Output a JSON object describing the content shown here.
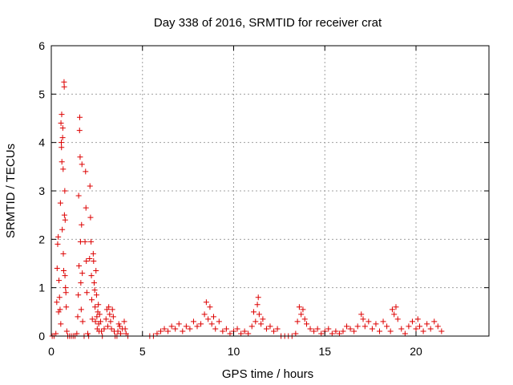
{
  "chart_data": {
    "type": "scatter",
    "title": "Day 338 of 2016, SRMTID for receiver crat",
    "xlabel": "GPS time / hours",
    "ylabel": "SRMTID / TECUs",
    "xlim": [
      0,
      24
    ],
    "ylim": [
      0,
      6
    ],
    "xticks": [
      0,
      5,
      10,
      15,
      20
    ],
    "yticks": [
      0,
      1,
      2,
      3,
      4,
      5,
      6
    ],
    "grid": true,
    "marker": "+",
    "color": "#dd0000",
    "series": [
      {
        "name": "SRMTID",
        "points": [
          [
            0.05,
            0.0
          ],
          [
            0.15,
            0.0
          ],
          [
            0.25,
            0.05
          ],
          [
            0.3,
            0.7
          ],
          [
            0.32,
            1.4
          ],
          [
            0.35,
            1.9
          ],
          [
            0.38,
            2.05
          ],
          [
            0.4,
            0.5
          ],
          [
            0.42,
            1.15
          ],
          [
            0.45,
            0.8
          ],
          [
            0.48,
            0.55
          ],
          [
            0.5,
            2.75
          ],
          [
            0.52,
            0.25
          ],
          [
            0.53,
            4.4
          ],
          [
            0.55,
            4.0
          ],
          [
            0.56,
            3.9
          ],
          [
            0.57,
            4.58
          ],
          [
            0.58,
            3.6
          ],
          [
            0.6,
            2.2
          ],
          [
            0.62,
            4.1
          ],
          [
            0.63,
            4.3
          ],
          [
            0.65,
            3.45
          ],
          [
            0.66,
            1.7
          ],
          [
            0.68,
            1.35
          ],
          [
            0.7,
            5.25
          ],
          [
            0.71,
            5.15
          ],
          [
            0.72,
            2.5
          ],
          [
            0.74,
            3.0
          ],
          [
            0.75,
            1.25
          ],
          [
            0.76,
            2.4
          ],
          [
            0.78,
            1.0
          ],
          [
            0.8,
            0.9
          ],
          [
            0.82,
            0.6
          ],
          [
            0.85,
            0.1
          ],
          [
            0.9,
            0.0
          ],
          [
            1.0,
            0.0
          ],
          [
            1.1,
            0.0
          ],
          [
            1.2,
            0.0
          ],
          [
            1.3,
            0.0
          ],
          [
            1.4,
            0.05
          ],
          [
            1.45,
            0.4
          ],
          [
            1.48,
            0.85
          ],
          [
            1.5,
            2.9
          ],
          [
            1.52,
            1.45
          ],
          [
            1.55,
            4.25
          ],
          [
            1.56,
            4.52
          ],
          [
            1.58,
            3.7
          ],
          [
            1.6,
            1.95
          ],
          [
            1.62,
            1.1
          ],
          [
            1.64,
            0.55
          ],
          [
            1.66,
            2.3
          ],
          [
            1.68,
            3.55
          ],
          [
            1.7,
            1.3
          ],
          [
            1.72,
            0.3
          ],
          [
            1.8,
            0.0
          ],
          [
            1.85,
            1.95
          ],
          [
            1.88,
            3.4
          ],
          [
            1.9,
            2.65
          ],
          [
            1.92,
            1.55
          ],
          [
            1.95,
            0.9
          ],
          [
            2.0,
            0.05
          ],
          [
            2.05,
            0.0
          ],
          [
            2.1,
            1.6
          ],
          [
            2.12,
            3.1
          ],
          [
            2.15,
            2.45
          ],
          [
            2.18,
            1.95
          ],
          [
            2.2,
            1.25
          ],
          [
            2.22,
            0.75
          ],
          [
            2.25,
            0.35
          ],
          [
            2.3,
            1.7
          ],
          [
            2.32,
            1.55
          ],
          [
            2.35,
            1.1
          ],
          [
            2.38,
            0.95
          ],
          [
            2.4,
            0.6
          ],
          [
            2.42,
            0.3
          ],
          [
            2.45,
            1.35
          ],
          [
            2.48,
            0.85
          ],
          [
            2.5,
            0.4
          ],
          [
            2.52,
            0.15
          ],
          [
            2.55,
            0.5
          ],
          [
            2.58,
            0.65
          ],
          [
            2.6,
            0.25
          ],
          [
            2.62,
            0.1
          ],
          [
            2.65,
            0.45
          ],
          [
            2.7,
            0.3
          ],
          [
            2.75,
            0.1
          ],
          [
            2.8,
            0.0
          ],
          [
            2.9,
            0.15
          ],
          [
            3.0,
            0.35
          ],
          [
            3.05,
            0.55
          ],
          [
            3.1,
            0.2
          ],
          [
            3.15,
            0.6
          ],
          [
            3.2,
            0.45
          ],
          [
            3.25,
            0.3
          ],
          [
            3.3,
            0.15
          ],
          [
            3.35,
            0.55
          ],
          [
            3.4,
            0.4
          ],
          [
            3.45,
            0.1
          ],
          [
            3.5,
            0.0
          ],
          [
            3.6,
            0.0
          ],
          [
            3.65,
            0.1
          ],
          [
            3.7,
            0.25
          ],
          [
            3.75,
            0.2
          ],
          [
            3.8,
            0.05
          ],
          [
            3.9,
            0.15
          ],
          [
            4.0,
            0.3
          ],
          [
            4.05,
            0.15
          ],
          [
            4.1,
            0.05
          ],
          [
            4.2,
            0.0
          ],
          [
            5.4,
            0.0
          ],
          [
            5.6,
            0.0
          ],
          [
            5.8,
            0.05
          ],
          [
            6.0,
            0.1
          ],
          [
            6.2,
            0.15
          ],
          [
            6.4,
            0.1
          ],
          [
            6.6,
            0.2
          ],
          [
            6.8,
            0.15
          ],
          [
            7.0,
            0.25
          ],
          [
            7.2,
            0.1
          ],
          [
            7.4,
            0.2
          ],
          [
            7.6,
            0.15
          ],
          [
            7.8,
            0.3
          ],
          [
            8.0,
            0.2
          ],
          [
            8.2,
            0.25
          ],
          [
            8.4,
            0.45
          ],
          [
            8.5,
            0.7
          ],
          [
            8.6,
            0.35
          ],
          [
            8.7,
            0.6
          ],
          [
            8.8,
            0.25
          ],
          [
            8.9,
            0.4
          ],
          [
            9.0,
            0.15
          ],
          [
            9.2,
            0.3
          ],
          [
            9.4,
            0.1
          ],
          [
            9.6,
            0.15
          ],
          [
            9.8,
            0.05
          ],
          [
            10.0,
            0.1
          ],
          [
            10.2,
            0.15
          ],
          [
            10.4,
            0.05
          ],
          [
            10.6,
            0.1
          ],
          [
            10.8,
            0.05
          ],
          [
            11.0,
            0.2
          ],
          [
            11.1,
            0.5
          ],
          [
            11.2,
            0.3
          ],
          [
            11.3,
            0.65
          ],
          [
            11.35,
            0.8
          ],
          [
            11.4,
            0.45
          ],
          [
            11.5,
            0.25
          ],
          [
            11.6,
            0.35
          ],
          [
            11.8,
            0.15
          ],
          [
            12.0,
            0.2
          ],
          [
            12.2,
            0.1
          ],
          [
            12.4,
            0.15
          ],
          [
            12.6,
            0.0
          ],
          [
            12.8,
            0.0
          ],
          [
            13.0,
            0.0
          ],
          [
            13.2,
            0.0
          ],
          [
            13.4,
            0.05
          ],
          [
            13.5,
            0.3
          ],
          [
            13.6,
            0.6
          ],
          [
            13.7,
            0.45
          ],
          [
            13.8,
            0.55
          ],
          [
            13.9,
            0.35
          ],
          [
            14.0,
            0.25
          ],
          [
            14.2,
            0.15
          ],
          [
            14.4,
            0.1
          ],
          [
            14.6,
            0.15
          ],
          [
            14.8,
            0.05
          ],
          [
            15.0,
            0.1
          ],
          [
            15.2,
            0.15
          ],
          [
            15.4,
            0.05
          ],
          [
            15.6,
            0.1
          ],
          [
            15.8,
            0.05
          ],
          [
            16.0,
            0.1
          ],
          [
            16.2,
            0.2
          ],
          [
            16.4,
            0.15
          ],
          [
            16.6,
            0.1
          ],
          [
            16.8,
            0.2
          ],
          [
            17.0,
            0.45
          ],
          [
            17.1,
            0.35
          ],
          [
            17.2,
            0.2
          ],
          [
            17.4,
            0.3
          ],
          [
            17.6,
            0.15
          ],
          [
            17.8,
            0.25
          ],
          [
            18.0,
            0.1
          ],
          [
            18.2,
            0.3
          ],
          [
            18.4,
            0.2
          ],
          [
            18.6,
            0.1
          ],
          [
            18.7,
            0.55
          ],
          [
            18.8,
            0.45
          ],
          [
            18.9,
            0.6
          ],
          [
            19.0,
            0.35
          ],
          [
            19.2,
            0.15
          ],
          [
            19.4,
            0.05
          ],
          [
            19.6,
            0.2
          ],
          [
            19.8,
            0.3
          ],
          [
            20.0,
            0.15
          ],
          [
            20.1,
            0.35
          ],
          [
            20.2,
            0.2
          ],
          [
            20.4,
            0.1
          ],
          [
            20.6,
            0.25
          ],
          [
            20.8,
            0.15
          ],
          [
            21.0,
            0.3
          ],
          [
            21.2,
            0.2
          ],
          [
            21.4,
            0.1
          ]
        ]
      }
    ]
  }
}
